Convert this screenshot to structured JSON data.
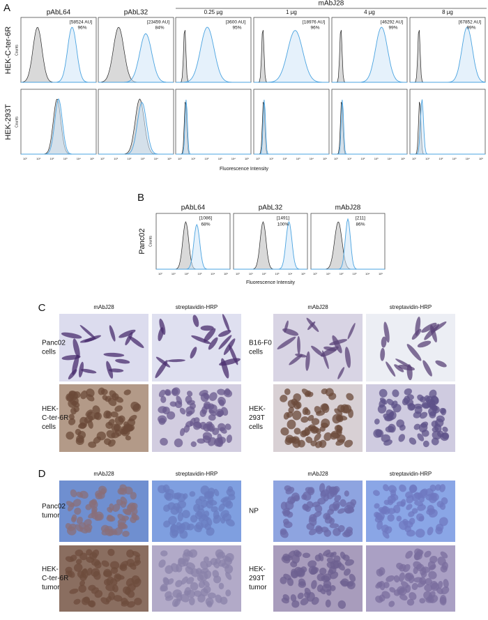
{
  "panel_a": {
    "label": "A",
    "group_label": "mAbJ28",
    "columns": [
      "pAbL64",
      "pAbL32",
      "0.25 µg",
      "1 µg",
      "4 µg",
      "8 µg"
    ],
    "rows": [
      {
        "label": "HEK-C-ter-6R",
        "annotations": [
          [
            "[58524 AU]",
            "96%"
          ],
          [
            "[23459 AU]",
            "84%"
          ],
          [
            "[3600 AU]",
            "95%"
          ],
          [
            "[18976 AU]",
            "96%"
          ],
          [
            "[46292 AU]",
            "99%"
          ],
          [
            "[67852 AU]",
            "99%"
          ]
        ]
      },
      {
        "label": "HEK-293T"
      }
    ],
    "y_label": "Counts",
    "x_label": "Fluorescence Intensity"
  },
  "panel_b": {
    "label": "B",
    "columns": [
      "pAbL64",
      "pAbL32",
      "mAbJ28"
    ],
    "row_label": "Panc02",
    "annotations": [
      [
        "[1086]",
        "68%"
      ],
      [
        "[1491]",
        "100%"
      ],
      [
        "[211]",
        "86%"
      ]
    ],
    "y_label": "Counts",
    "x_label": "Fluorescence Intensity"
  },
  "x_ticks": [
    "10⁰",
    "10¹",
    "10²",
    "10³",
    "10⁴",
    "10⁵"
  ],
  "panel_c": {
    "label": "C",
    "columns": [
      "mAbJ28",
      "streptavidin-HRP",
      "mAbJ28",
      "streptavidin-HRP"
    ],
    "row_labels": [
      [
        "Panc02",
        "cells"
      ],
      [
        "HEK-",
        "C-ter-6R",
        "cells"
      ],
      [
        "B16-F0",
        "cells"
      ],
      [
        "HEK-",
        "293T",
        "cells"
      ]
    ]
  },
  "panel_d": {
    "label": "D",
    "columns": [
      "mAbJ28",
      "streptavidin-HRP",
      "mAbJ28",
      "streptavidin-HRP"
    ],
    "row_labels": [
      [
        "Panc02",
        "tumor"
      ],
      [
        "HEK-",
        "C-ter-6R",
        "tumor"
      ],
      [
        "NP"
      ],
      [
        "HEK-",
        "293T",
        "tumor"
      ]
    ]
  }
}
